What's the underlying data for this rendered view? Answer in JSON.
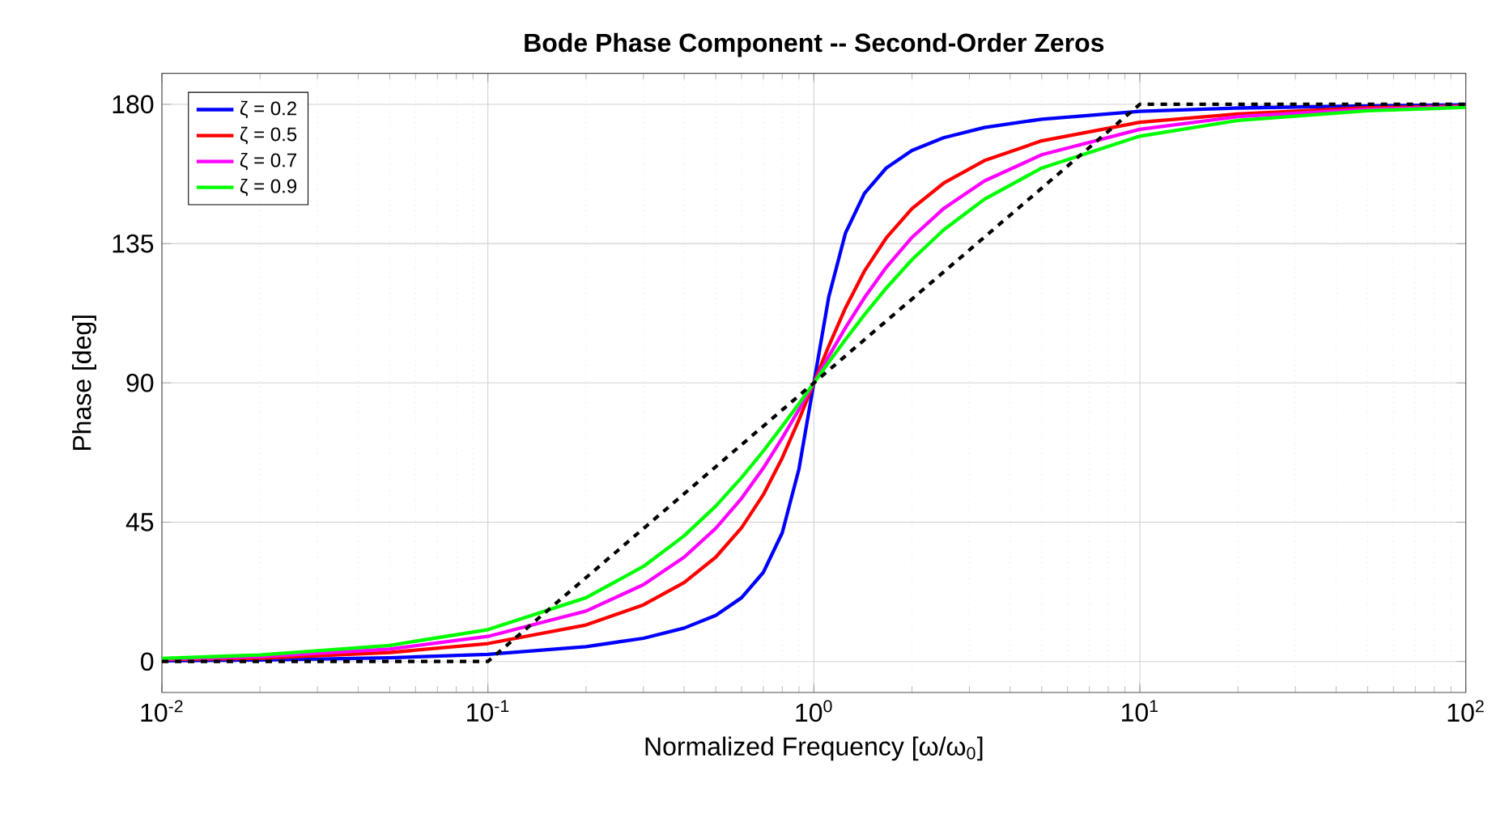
{
  "chart_data": {
    "type": "line",
    "title": "Bode Phase Component -- Second-Order Zeros",
    "xlabel": "Normalized Frequency [ω/ω$_{0}$]",
    "ylabel": "Phase [deg]",
    "log": "x",
    "grid": true,
    "legend": "top left",
    "xlim": [
      0.01,
      100
    ],
    "ylim": [
      -10,
      190
    ],
    "xticks": [
      {
        "value": 0.01,
        "label": "10$^{-2}$"
      },
      {
        "value": 0.1,
        "label": "10$^{-1}$"
      },
      {
        "value": 1,
        "label": "10$^{0}$"
      },
      {
        "value": 10,
        "label": "10$^{1}$"
      },
      {
        "value": 100,
        "label": "10$^{2}$"
      }
    ],
    "yticks": [
      0,
      45,
      90,
      135,
      180
    ],
    "series": [
      {
        "name": "ζ = 0.2",
        "color": "#0000ff",
        "x": [
          0.01,
          0.02,
          0.05,
          0.1,
          0.2,
          0.3,
          0.4,
          0.5,
          0.6,
          0.7,
          0.8,
          0.9,
          1,
          1.111,
          1.25,
          1.429,
          1.667,
          2,
          2.5,
          3.333,
          5,
          10,
          20,
          50,
          100
        ],
        "values": [
          0.2,
          0.5,
          1.2,
          2.3,
          4.8,
          7.5,
          10.8,
          14.9,
          20.6,
          28.8,
          41.6,
          62.2,
          90,
          117.8,
          138.4,
          151.2,
          159.4,
          165.1,
          169.2,
          172.5,
          175.2,
          177.7,
          178.8,
          179.5,
          179.8
        ]
      },
      {
        "name": "ζ = 0.5",
        "color": "#ff0000",
        "x": [
          0.01,
          0.02,
          0.05,
          0.1,
          0.2,
          0.3,
          0.4,
          0.5,
          0.6,
          0.7,
          0.8,
          0.9,
          1,
          1.111,
          1.25,
          1.429,
          1.667,
          2,
          2.5,
          3.333,
          5,
          10,
          20,
          50,
          100
        ],
        "values": [
          0.6,
          1.1,
          2.9,
          5.8,
          11.8,
          18.3,
          25.5,
          33.7,
          43.2,
          53.9,
          65.8,
          78.1,
          90,
          101.9,
          114.2,
          126.1,
          136.8,
          146.3,
          154.5,
          161.8,
          168.2,
          174.2,
          176.9,
          178.9,
          179.4
        ]
      },
      {
        "name": "ζ = 0.7",
        "color": "#ff00ff",
        "x": [
          0.01,
          0.02,
          0.05,
          0.1,
          0.2,
          0.3,
          0.4,
          0.5,
          0.6,
          0.7,
          0.8,
          0.9,
          1,
          1.111,
          1.25,
          1.429,
          1.667,
          2,
          2.5,
          3.333,
          5,
          10,
          20,
          50,
          100
        ],
        "values": [
          0.8,
          1.6,
          4.0,
          8.1,
          16.3,
          24.8,
          33.7,
          43.0,
          52.7,
          62.5,
          72.2,
          81.4,
          90,
          98.6,
          107.8,
          117.5,
          127.3,
          137.0,
          146.3,
          155.2,
          163.7,
          171.9,
          176.0,
          178.4,
          179.2
        ]
      },
      {
        "name": "ζ = 0.9",
        "color": "#00ff00",
        "x": [
          0.01,
          0.02,
          0.05,
          0.1,
          0.2,
          0.3,
          0.4,
          0.5,
          0.6,
          0.7,
          0.8,
          0.9,
          1,
          1.111,
          1.25,
          1.429,
          1.667,
          2,
          2.5,
          3.333,
          5,
          10,
          20,
          50,
          100
        ],
        "values": [
          1.0,
          2.1,
          5.2,
          10.3,
          20.6,
          30.7,
          40.6,
          50.2,
          59.4,
          68.0,
          76.0,
          83.3,
          90,
          96.7,
          104.0,
          112.0,
          120.6,
          129.8,
          139.4,
          149.3,
          159.4,
          169.7,
          174.8,
          177.9,
          179.0
        ]
      },
      {
        "color": "#000000",
        "line_style": "dashed",
        "x": [
          0.01,
          0.1,
          10,
          100
        ],
        "values": [
          0,
          0,
          180,
          180
        ]
      }
    ]
  }
}
